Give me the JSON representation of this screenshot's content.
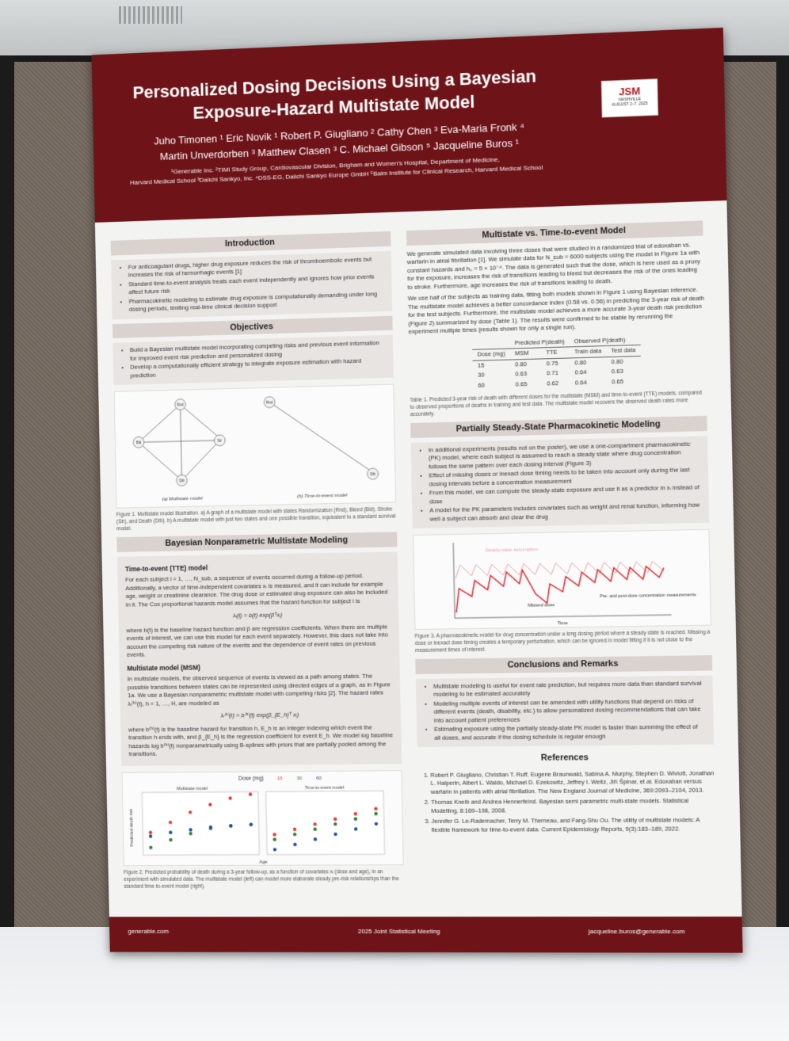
{
  "header": {
    "title_line1": "Personalized Dosing Decisions Using a Bayesian",
    "title_line2": "Exposure-Hazard Multistate Model",
    "authors_line1": "Juho Timonen ¹   Eric Novik ¹   Robert P. Giugliano ²   Cathy Chen ³   Eva-Maria Fronk ⁴",
    "authors_line2": "Martin Unverdorben ³   Matthew Clasen ³   C. Michael Gibson ⁵   Jacqueline Buros ¹",
    "affil_line1": "¹Generable Inc.   ²TIMI Study Group, Cardiovascular Division, Brigham and Women's Hospital, Department of Medicine,",
    "affil_line2": "Harvard Medical School   ³Daiichi Sankyo, Inc.   ⁴DSS-EG, Daiichi Sankyo Europe GmbH   ⁵Baim Institute for Clinical Research, Harvard Medical School",
    "logo_text": "JSM",
    "logo_sub": "NASHVILLE",
    "logo_date": "AUGUST 2–7, 2025"
  },
  "intro": {
    "heading": "Introduction",
    "bullets": [
      "For anticoagulant drugs, higher drug exposure reduces the risk of thromboembolic events but increases the risk of hemorrhagic events [1]",
      "Standard time-to-event analysis treats each event independently and ignores how prior events affect future risk",
      "Pharmacokinetic modeling to estimate drug exposure is computationally demanding under long dosing periods, limiting real-time clinical decision support"
    ]
  },
  "objectives": {
    "heading": "Objectives",
    "bullets": [
      "Build a Bayesian multistate model incorporating competing risks and previous event information for improved event risk prediction and personalized dosing",
      "Develop a computationally efficient strategy to integrate exposure estimation with hazard prediction"
    ]
  },
  "figure1": {
    "label_a": "(a) Multistate model",
    "label_b": "(b) Time-to-event model",
    "caption": "Figure 1. Multistate model illustration. a) A graph of a multistate model with states Randomization (Rnd), Bleed (Bld), Stroke (Str), and Death (Dth). b) A multistate model with just two states and one possible transition, equivalent to a standard survival model.",
    "nodes": [
      "Rnd",
      "Bld",
      "Str",
      "Dth"
    ]
  },
  "bnm": {
    "heading": "Bayesian Nonparametric Multistate Modeling",
    "tte_heading": "Time-to-event (TTE) model",
    "tte_text": "For each subject i = 1, …, N_sub, a sequence of events occurred during a follow-up period. Additionally, a vector of time-independent covariates xᵢ is measured, and it can include for example age, weight or creatinine clearance. The drug dose or estimated drug exposure can also be included in it. The Cox proportional hazards model assumes that the hazard function for subject i is",
    "tte_eq": "λᵢ(t) = b(t) exp(βᵀxᵢ)",
    "tte_text2": "where b(t) is the baseline hazard function and β are regression coefficients. When there are multiple events of interest, we can use this model for each event separately. However, this does not take into account the competing risk nature of the events and the dependence of event rates on previous events.",
    "msm_heading": "Multistate model (MSM)",
    "msm_text": "In multistate models, the observed sequence of events is viewed as a path among states. The possible transitions between states can be represented using directed edges of a graph, as in Figure 1a. We use a Bayesian nonparametric multistate model with competing risks [2]. The hazard rates λᵢ⁽ʰ⁾(t), h = 1, …, H, are modeled as",
    "msm_eq": "λᵢ⁽ʰ⁾(t) = b⁽ʰ⁾(t) exp(β_{E_h}ᵀ xᵢ)",
    "msm_text2": "where b⁽ʰ⁾(t) is the baseline hazard for transition h, E_h is an integer indexing which event the transition h ends with, and β_{E_h} is the regression coefficient for event E_h. We model log baseline hazards log b⁽ʰ⁾(t) nonparametrically using B-splines with priors that are partially pooled among the transitions."
  },
  "figure2": {
    "legend_title": "Dose (mg)",
    "panel_a": "Multistate model",
    "panel_b": "Time-to-event model",
    "ylabel": "Predicted death risk",
    "xlabel": "Age",
    "caption": "Figure 2. Predicted probability of death during a 3-year follow-up, as a function of covariates xᵢ (dose and age), in an experiment with simulated data. The multistate model (left) can model more elaborate steady pre-risk relationships than the standard time-to-event model (right)."
  },
  "chart_data": {
    "type": "scatter",
    "title": "",
    "xlabel": "Age",
    "ylabel": "Predicted death risk",
    "ylim": [
      0.4,
      0.9
    ],
    "series": [
      {
        "name": "15",
        "color": "#e53935",
        "msm": [
          0.58,
          0.66,
          0.74,
          0.8,
          0.85,
          0.88
        ],
        "tte": [
          0.56,
          0.6,
          0.64,
          0.68,
          0.72,
          0.76
        ]
      },
      {
        "name": "30",
        "color": "#2e7d32",
        "msm": [
          0.46,
          0.52,
          0.57,
          0.61,
          0.63,
          0.64
        ],
        "tte": [
          0.52,
          0.56,
          0.6,
          0.64,
          0.68,
          0.72
        ]
      },
      {
        "name": "60",
        "color": "#1e4fa0",
        "msm": [
          0.55,
          0.58,
          0.6,
          0.62,
          0.63,
          0.64
        ],
        "tte": [
          0.44,
          0.48,
          0.52,
          0.56,
          0.6,
          0.64
        ]
      }
    ]
  },
  "mvt": {
    "heading": "Multistate vs. Time-to-event Model",
    "text1": "We generate simulated data involving three doses that were studied in a randomized trial of edoxaban vs. warfarin in atrial fibrillation [1]. We simulate data for N_sub = 6000 subjects using the model in Figure 1a with constant hazards and h₀ = 5 × 10⁻⁴. The data is generated such that the dose, which is here used as a proxy for the exposure, increases the risk of transitions leading to bleed but decreases the risk of the ones leading to stroke. Furthermore, age increases the risk of transitions leading to death.",
    "text2": "We use half of the subjects as training data, fitting both models shown in Figure 1 using Bayesian inference. The multistate model achieves a better concordance index (0.58 vs. 0.56) in predicting the 3-year risk of death for the test subjects. Furthermore, the multistate model achieves a more accurate 3-year death risk prediction (Figure 2) summarized by dose (Table 1). The results were confirmed to be stable by rerunning the experiment multiple times (results shown for only a single run).",
    "table": {
      "h_pred": "Predicted P(death)",
      "h_obs": "Observed P(death)",
      "cols": [
        "Dose (mg)",
        "MSM",
        "TTE",
        "Train data",
        "Test data"
      ],
      "rows": [
        [
          "15",
          "0.80",
          "0.75",
          "0.80",
          "0.80"
        ],
        [
          "30",
          "0.63",
          "0.71",
          "0.64",
          "0.63"
        ],
        [
          "60",
          "0.65",
          "0.62",
          "0.64",
          "0.65"
        ]
      ]
    },
    "table_caption": "Table 1. Predicted 3-year risk of death with different doses for the multistate (MSM) and time-to-event (TTE) models, compared to observed proportions of deaths in training and test data. The multistate model recovers the observed death rates more accurately."
  },
  "pk": {
    "heading": "Partially Steady-State Pharmacokinetic Modeling",
    "bullets": [
      "In additional experiments (results not on the poster), we use a one-compartment pharmacokinetic (PK) model, where each subject is assumed to reach a steady state where drug concentration follows the same pattern over each dosing interval (Figure 3)",
      "Effect of missing doses or inexact dose timing needs to be taken into account only during the last dosing intervals before a concentration measurement",
      "From this model, we can compute the steady-state exposure and use it as a predictor in xᵢ instead of dose",
      "A model for the PK parameters includes covariates such as weight and renal function, informing how well a subject can absorb and clear the drug"
    ],
    "fig_steady": "Steady-state assumption",
    "fig_missed": "Missed dose",
    "fig_prepost": "Pre- and post-dose concentration measurements",
    "fig_xlabel": "Time",
    "caption": "Figure 3. A pharmacokinetic model for drug concentration under a long dosing period where a steady state is reached. Missing a dose or inexact dose timing creates a temporary perturbation, which can be ignored in model fitting if it is not close to the measurement times of interest."
  },
  "conclusions": {
    "heading": "Conclusions and Remarks",
    "bullets": [
      "Multistate modeling is useful for event rate prediction, but requires more data than standard survival modeling to be estimated accurately",
      "Modeling multiple events of interest can be amended with utility functions that depend on risks of different events (death, disability, etc.) to allow personalized dosing recommendations that can take into account patient preferences",
      "Estimating exposure using the partially steady-state PK model is faster than summing the effect of all doses, and accurate if the dosing schedule is regular enough"
    ]
  },
  "references": {
    "heading": "References",
    "items": [
      "Robert P. Giugliano, Christian T. Ruff, Eugene Braunwald, Sabina A. Murphy, Stephen D. Wiviott, Jonathan L. Halperin, Albert L. Waldo, Michael D. Ezekowitz, Jeffrey I. Weitz, Jiří Špinar, et al. Edoxaban versus warfarin in patients with atrial fibrillation. The New England Journal of Medicine, 369:2093–2104, 2013.",
      "Thomas Kneib and Andrea Hennerfeind. Bayesian semi parametric multi-state models. Statistical Modelling, 8:169–198, 2008.",
      "Jennifer G. Le-Rademacher, Terry M. Therneau, and Fang-Shu Ou. The utility of multistate models: A flexible framework for time-to-event data. Current Epidemiology Reports, 9(3):183–189, 2022."
    ]
  },
  "footer": {
    "left": "generable.com",
    "center": "2025 Joint Statistical Meeting",
    "right": "jacqueline.buros@generable.com"
  }
}
